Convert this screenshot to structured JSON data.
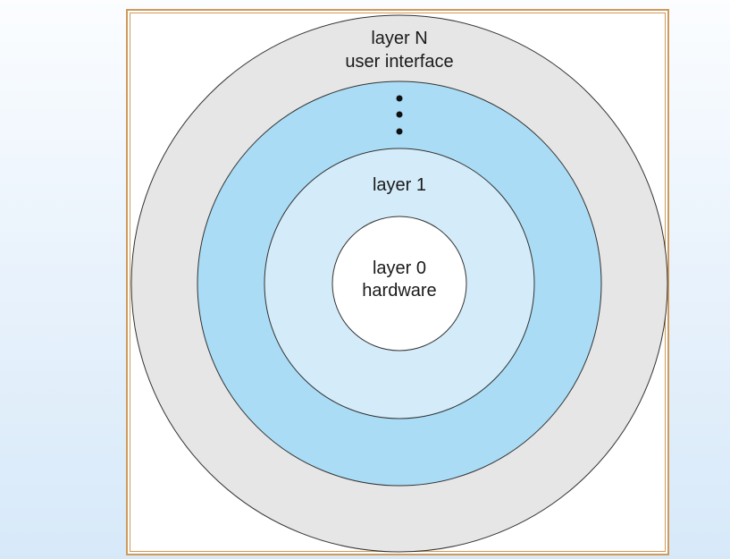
{
  "diagram": {
    "layers": [
      {
        "id": "layer-n",
        "lines": [
          "layer N",
          "user interface"
        ],
        "fill": "#e6e6e6"
      },
      {
        "id": "middle-layers",
        "lines": [],
        "fill": "#aadcf5"
      },
      {
        "id": "layer-1",
        "lines": [
          "layer 1"
        ],
        "fill": "#d4ecf9"
      },
      {
        "id": "layer-0",
        "lines": [
          "layer 0",
          "hardware"
        ],
        "fill": "#ffffff"
      }
    ],
    "colors": {
      "frame_border": "#cf9a5b",
      "outline": "#333333",
      "page_background_top": "#fbfdff",
      "page_background_bottom": "#d7e9f9"
    }
  }
}
